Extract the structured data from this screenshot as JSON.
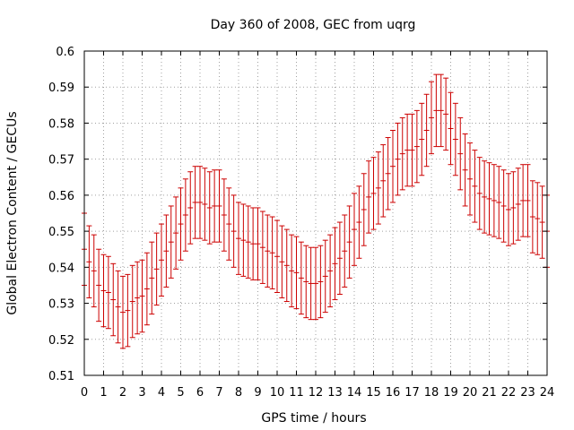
{
  "chart_data": {
    "type": "scatter",
    "title": "Day 360 of 2008, GEC from uqrg",
    "xlabel": "GPS time / hours",
    "ylabel": "Global Electron Content / GECUs",
    "xlim": [
      0,
      24
    ],
    "ylim": [
      0.51,
      0.6
    ],
    "xticks": [
      0,
      1,
      2,
      3,
      4,
      5,
      6,
      7,
      8,
      9,
      10,
      11,
      12,
      13,
      14,
      15,
      16,
      17,
      18,
      19,
      20,
      21,
      22,
      23,
      24
    ],
    "yticks": [
      0.51,
      0.52,
      0.53,
      0.54,
      0.55,
      0.56,
      0.57,
      0.58,
      0.59,
      0.6
    ],
    "ytick_labels": [
      "0.51",
      "0.52",
      "0.53",
      "0.54",
      "0.55",
      "0.56",
      "0.57",
      "0.58",
      "0.59",
      "0.6"
    ],
    "grid": true,
    "error_bars": true,
    "x": [
      0,
      0.25,
      0.5,
      0.75,
      1,
      1.25,
      1.5,
      1.75,
      2,
      2.25,
      2.5,
      2.75,
      3,
      3.25,
      3.5,
      3.75,
      4,
      4.25,
      4.5,
      4.75,
      5,
      5.25,
      5.5,
      5.75,
      6,
      6.25,
      6.5,
      6.75,
      7,
      7.25,
      7.5,
      7.75,
      8,
      8.25,
      8.5,
      8.75,
      9,
      9.25,
      9.5,
      9.75,
      10,
      10.25,
      10.5,
      10.75,
      11,
      11.25,
      11.5,
      11.75,
      12,
      12.25,
      12.5,
      12.75,
      13,
      13.25,
      13.5,
      13.75,
      14,
      14.25,
      14.5,
      14.75,
      15,
      15.25,
      15.5,
      15.75,
      16,
      16.25,
      16.5,
      16.75,
      17,
      17.25,
      17.5,
      17.75,
      18,
      18.25,
      18.5,
      18.75,
      19,
      19.25,
      19.5,
      19.75,
      20,
      20.25,
      20.5,
      20.75,
      21,
      21.25,
      21.5,
      21.75,
      22,
      22.25,
      22.5,
      22.75,
      23,
      23.25,
      23.5,
      23.75,
      24
    ],
    "y": [
      0.545,
      0.5415,
      0.539,
      0.535,
      0.5335,
      0.533,
      0.531,
      0.529,
      0.5275,
      0.528,
      0.5305,
      0.5315,
      0.532,
      0.534,
      0.537,
      0.5395,
      0.542,
      0.5445,
      0.547,
      0.5495,
      0.552,
      0.5545,
      0.5565,
      0.558,
      0.558,
      0.5575,
      0.5565,
      0.557,
      0.557,
      0.5545,
      0.552,
      0.55,
      0.548,
      0.5475,
      0.547,
      0.5465,
      0.5465,
      0.5455,
      0.5445,
      0.544,
      0.543,
      0.5415,
      0.5405,
      0.539,
      0.5385,
      0.537,
      0.536,
      0.5355,
      0.5355,
      0.536,
      0.5375,
      0.539,
      0.541,
      0.5425,
      0.5445,
      0.547,
      0.5505,
      0.5525,
      0.556,
      0.5595,
      0.5605,
      0.562,
      0.564,
      0.566,
      0.568,
      0.57,
      0.5715,
      0.5725,
      0.5725,
      0.5735,
      0.5755,
      0.578,
      0.5815,
      0.5835,
      0.5835,
      0.5825,
      0.5785,
      0.5755,
      0.5715,
      0.567,
      0.5645,
      0.5625,
      0.5605,
      0.5595,
      0.559,
      0.5585,
      0.558,
      0.557,
      0.556,
      0.5565,
      0.5575,
      0.5585,
      0.5585,
      0.554,
      0.5535,
      0.5525,
      0.55
    ],
    "error": 0.01
  }
}
